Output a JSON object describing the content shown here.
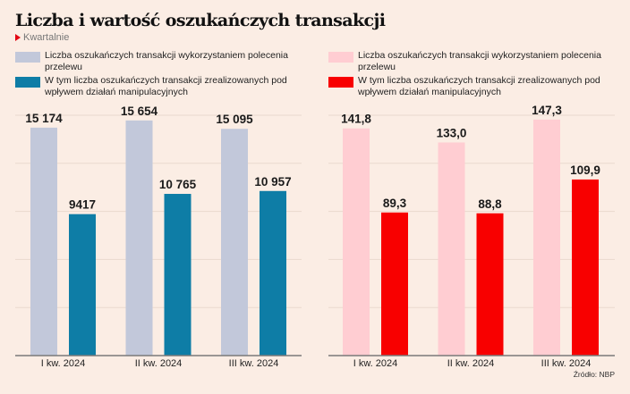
{
  "title": "Liczba i wartość oszukańczych transakcji",
  "subtitle": "Kwartalnie",
  "source": "Źródło: NBP",
  "colors": {
    "background": "#FBEDE4",
    "accent_triangle": "#E30613",
    "left_total": "#C2C8DA",
    "left_manipulated": "#0E7DA6",
    "right_total": "#FFCDD2",
    "right_manipulated": "#F80000",
    "gridline": "#EAD9CE",
    "axis": "#7a7a7a"
  },
  "legends": [
    {
      "items": [
        {
          "label": "Liczba oszukańczych transakcji wykorzystaniem polecenia przelewu",
          "color": "#C2C8DA"
        },
        {
          "label": "W tym liczba oszukańczych transakcji zrealizowanych pod wpływem działań manipulacyjnych",
          "color": "#0E7DA6"
        }
      ]
    },
    {
      "items": [
        {
          "label": "Liczba oszukańczych transakcji wykorzystaniem polecenia przelewu",
          "color": "#FFCDD2"
        },
        {
          "label": "W tym liczba oszukańczych transakcji zrealizowanych pod wpływem działań manipulacyjnych",
          "color": "#F80000"
        }
      ]
    }
  ],
  "chart_data": [
    {
      "type": "bar",
      "title": "Liczba i wartość oszukańczych transakcji",
      "subtitle": "Kwartalnie",
      "categories": [
        "I kw. 2024",
        "II kw. 2024",
        "III kw. 2024"
      ],
      "series": [
        {
          "name": "Liczba oszukańczych transakcji wykorzystaniem polecenia przelewu",
          "values": [
            15174,
            15654,
            15095
          ],
          "labels": [
            "15 174",
            "15 654",
            "15 095"
          ],
          "color": "#C2C8DA"
        },
        {
          "name": "W tym liczba oszukańczych transakcji zrealizowanych pod wpływem działań manipulacyjnych",
          "values": [
            9417,
            10765,
            10957
          ],
          "labels": [
            "9417",
            "10 765",
            "10 957"
          ],
          "color": "#0E7DA6"
        }
      ],
      "xlabel": "",
      "ylabel": "",
      "ylim": [
        0,
        16000
      ],
      "gridlines": [
        3200,
        6400,
        9600,
        12800,
        16000
      ],
      "grid": true,
      "legend": "top"
    },
    {
      "type": "bar",
      "categories": [
        "I kw. 2024",
        "II kw. 2024",
        "III kw. 2024"
      ],
      "series": [
        {
          "name": "Liczba oszukańczych transakcji wykorzystaniem polecenia przelewu",
          "values": [
            141.8,
            133.0,
            147.3
          ],
          "labels": [
            "141,8",
            "133,0",
            "147,3"
          ],
          "color": "#FFCDD2"
        },
        {
          "name": "W tym liczba oszukańczych transakcji zrealizowanych pod wpływem działań manipulacyjnych",
          "values": [
            89.3,
            88.8,
            109.9
          ],
          "labels": [
            "89,3",
            "88,8",
            "109,9"
          ],
          "color": "#F80000"
        }
      ],
      "xlabel": "",
      "ylabel": "",
      "ylim": [
        0,
        150
      ],
      "gridlines": [
        30,
        60,
        90,
        120,
        150
      ],
      "grid": true,
      "legend": "top",
      "source": "Źródło: NBP"
    }
  ]
}
